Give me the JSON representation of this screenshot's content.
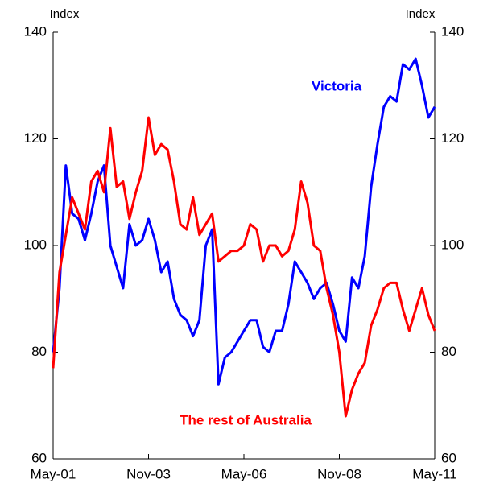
{
  "chart_data": {
    "type": "line",
    "y_label": "Index",
    "y2_label": "Index",
    "categories": [
      "May-01",
      null,
      null,
      null,
      null,
      null,
      null,
      null,
      null,
      null,
      null,
      null,
      null,
      null,
      null,
      "Nov-03",
      null,
      null,
      null,
      null,
      null,
      null,
      null,
      null,
      null,
      null,
      null,
      null,
      null,
      null,
      "May-06",
      null,
      null,
      null,
      null,
      null,
      null,
      null,
      null,
      null,
      null,
      null,
      null,
      null,
      null,
      "Nov-08",
      null,
      null,
      null,
      null,
      null,
      null,
      null,
      null,
      null,
      null,
      null,
      null,
      null,
      null,
      "May-11"
    ],
    "series": [
      {
        "name": "Victoria",
        "color": "#0000ff",
        "axis": "y",
        "values": [
          80,
          92,
          115,
          106,
          105,
          101,
          106,
          112,
          115,
          100,
          96,
          92,
          104,
          100,
          101,
          105,
          101,
          95,
          97,
          90,
          87,
          86,
          83,
          86,
          100,
          103,
          74,
          79,
          80,
          82,
          84,
          86,
          86,
          81,
          80,
          84,
          84,
          89,
          97,
          95,
          93,
          90,
          92,
          93,
          89,
          84,
          82,
          94,
          92,
          98,
          111,
          119,
          126,
          128,
          127,
          134,
          133,
          135,
          130,
          124,
          126
        ]
      },
      {
        "name": "The rest of Australia",
        "color": "#ff0000",
        "axis": "y",
        "values": [
          77,
          95,
          102,
          109,
          106,
          103,
          112,
          114,
          110,
          122,
          111,
          112,
          105,
          110,
          114,
          124,
          117,
          119,
          118,
          112,
          104,
          103,
          109,
          102,
          104,
          106,
          97,
          98,
          99,
          99,
          100,
          104,
          103,
          97,
          100,
          100,
          98,
          99,
          103,
          112,
          108,
          100,
          99,
          92,
          87,
          80,
          68,
          73,
          76,
          78,
          85,
          88,
          92,
          93,
          93,
          88,
          84,
          88,
          92,
          87,
          84
        ]
      }
    ],
    "ylim": [
      60,
      140
    ],
    "yticks": [
      60,
      80,
      100,
      120,
      140
    ],
    "y2lim": [
      60,
      140
    ],
    "y2ticks": [
      60,
      80,
      100,
      120,
      140
    ]
  }
}
